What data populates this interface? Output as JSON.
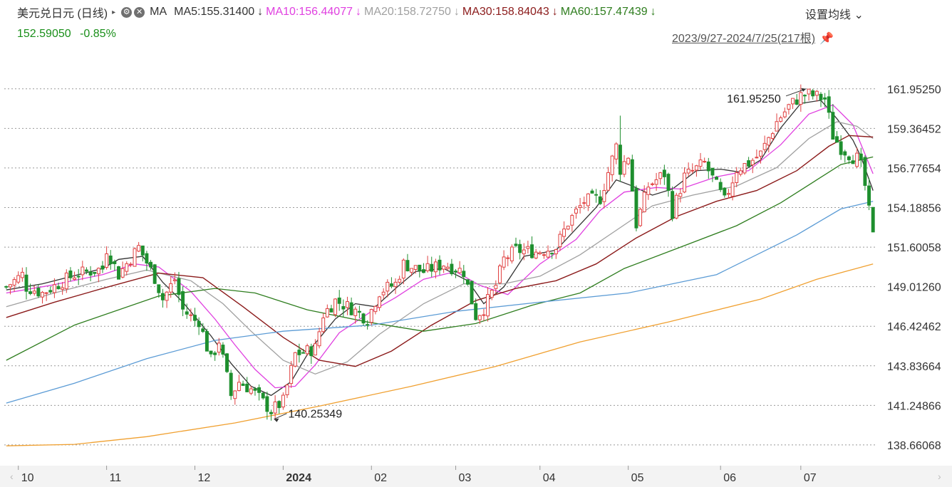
{
  "header": {
    "title": "美元兑日元 (日线)",
    "expand_glyph": "▸",
    "gear_glyph": "⚙",
    "close_glyph": "✕",
    "ma_label": "MA",
    "settings_label": "设置均线",
    "settings_caret": "⌄",
    "range_label": "2023/9/27-2024/7/25(217根)",
    "pin_glyph": "📌",
    "down_arrow": "↓"
  },
  "price": {
    "value": "152.59050",
    "change": "-0.85%"
  },
  "moving_averages": [
    {
      "label": "MA5:155.31400",
      "color": "#333333"
    },
    {
      "label": "MA10:156.44077",
      "color": "#e040e0"
    },
    {
      "label": "MA20:158.72750",
      "color": "#a0a0a0"
    },
    {
      "label": "MA30:158.84043",
      "color": "#8b1a1a"
    },
    {
      "label": "MA60:157.47439",
      "color": "#2e7d1e"
    }
  ],
  "colors": {
    "up": "#e04040",
    "down": "#1e8f2e",
    "ma5": "#333333",
    "ma10": "#e040e0",
    "ma20": "#a0a0a0",
    "ma30": "#8b1a1a",
    "ma60": "#2e7d1e",
    "ma120": "#5b9bd5",
    "ma250": "#f0a030",
    "grid": "#999999"
  },
  "chart_data": {
    "type": "candlestick",
    "ylim": [
      137.4,
      163.2
    ],
    "y_ticks": [
      "161.95250",
      "159.36452",
      "156.77654",
      "154.18856",
      "151.60058",
      "149.01260",
      "146.42462",
      "143.83664",
      "141.24866",
      "138.66068"
    ],
    "x_tick_labels": [
      "10",
      "11",
      "12",
      "2024",
      "02",
      "03",
      "04",
      "05",
      "06",
      "07"
    ],
    "x_tick_dates": [
      "2023-10-02",
      "2023-11-01",
      "2023-12-01",
      "2024-01-02",
      "2024-02-01",
      "2024-03-01",
      "2024-04-01",
      "2024-05-01",
      "2024-06-03",
      "2024-07-01"
    ],
    "date_range": [
      "2023-09-27",
      "2024-07-25"
    ],
    "bar_count": 217,
    "high_annotation": "161.95250",
    "low_annotation": "140.25349",
    "high_point": {
      "date": "2024-07-03",
      "value": 161.9525
    },
    "low_point": {
      "date": "2023-12-28",
      "value": 140.25349
    },
    "candle_path": [
      [
        "2023-09-27",
        149.0
      ],
      [
        "2023-10-03",
        149.8
      ],
      [
        "2023-10-04",
        149.0
      ],
      [
        "2023-10-10",
        148.6
      ],
      [
        "2023-10-20",
        149.8
      ],
      [
        "2023-10-31",
        150.2
      ],
      [
        "2023-11-01",
        151.5
      ],
      [
        "2023-11-06",
        149.8
      ],
      [
        "2023-11-13",
        151.6
      ],
      [
        "2023-11-17",
        149.6
      ],
      [
        "2023-11-21",
        148.2
      ],
      [
        "2023-11-24",
        149.5
      ],
      [
        "2023-11-28",
        147.5
      ],
      [
        "2023-12-01",
        146.8
      ],
      [
        "2023-12-04",
        146.8
      ],
      [
        "2023-12-07",
        144.2
      ],
      [
        "2023-12-11",
        145.5
      ],
      [
        "2023-12-14",
        141.9
      ],
      [
        "2023-12-18",
        142.8
      ],
      [
        "2023-12-21",
        142.3
      ],
      [
        "2023-12-28",
        140.9
      ],
      [
        "2024-01-02",
        141.5
      ],
      [
        "2024-01-05",
        144.6
      ],
      [
        "2024-01-10",
        144.8
      ],
      [
        "2024-01-12",
        145.0
      ],
      [
        "2024-01-16",
        147.2
      ],
      [
        "2024-01-19",
        148.1
      ],
      [
        "2024-01-25",
        147.6
      ],
      [
        "2024-01-31",
        146.9
      ],
      [
        "2024-02-05",
        148.7
      ],
      [
        "2024-02-09",
        149.2
      ],
      [
        "2024-02-13",
        150.5
      ],
      [
        "2024-02-20",
        150.0
      ],
      [
        "2024-02-27",
        150.5
      ],
      [
        "2024-03-05",
        150.0
      ],
      [
        "2024-03-08",
        147.1
      ],
      [
        "2024-03-12",
        147.6
      ],
      [
        "2024-03-15",
        149.1
      ],
      [
        "2024-03-19",
        150.8
      ],
      [
        "2024-03-22",
        151.4
      ],
      [
        "2024-03-29",
        151.3
      ],
      [
        "2024-04-05",
        151.6
      ],
      [
        "2024-04-10",
        153.2
      ],
      [
        "2024-04-16",
        154.6
      ],
      [
        "2024-04-22",
        154.8
      ],
      [
        "2024-04-26",
        158.2
      ],
      [
        "2024-04-29",
        156.7
      ],
      [
        "2024-05-01",
        157.6
      ],
      [
        "2024-05-03",
        153.1
      ],
      [
        "2024-05-08",
        155.6
      ],
      [
        "2024-05-14",
        156.4
      ],
      [
        "2024-05-16",
        153.9
      ],
      [
        "2024-05-21",
        156.2
      ],
      [
        "2024-05-28",
        157.1
      ],
      [
        "2024-06-04",
        154.6
      ],
      [
        "2024-06-07",
        156.7
      ],
      [
        "2024-06-12",
        157.1
      ],
      [
        "2024-06-17",
        157.7
      ],
      [
        "2024-06-21",
        159.8
      ],
      [
        "2024-06-26",
        160.8
      ],
      [
        "2024-07-01",
        161.5
      ],
      [
        "2024-07-03",
        161.6
      ],
      [
        "2024-07-09",
        161.3
      ],
      [
        "2024-07-11",
        158.9
      ],
      [
        "2024-07-15",
        158.1
      ],
      [
        "2024-07-18",
        157.5
      ],
      [
        "2024-07-19",
        157.4
      ],
      [
        "2024-07-22",
        156.9
      ],
      [
        "2024-07-23",
        155.6
      ],
      [
        "2024-07-24",
        153.9
      ],
      [
        "2024-07-25",
        152.59
      ]
    ],
    "ma_series": [
      {
        "key": "ma5",
        "points": [
          [
            "2023-09-27",
            148.8
          ],
          [
            "2023-10-10",
            149.2
          ],
          [
            "2023-10-31",
            150.2
          ],
          [
            "2023-11-06",
            150.8
          ],
          [
            "2023-11-14",
            151.0
          ],
          [
            "2023-11-21",
            149.3
          ],
          [
            "2023-11-28",
            148.0
          ],
          [
            "2023-12-07",
            145.8
          ],
          [
            "2023-12-14",
            144.0
          ],
          [
            "2023-12-21",
            142.5
          ],
          [
            "2023-12-28",
            141.9
          ],
          [
            "2024-01-04",
            142.8
          ],
          [
            "2024-01-11",
            145.0
          ],
          [
            "2024-01-19",
            146.9
          ],
          [
            "2024-01-26",
            147.9
          ],
          [
            "2024-02-02",
            147.7
          ],
          [
            "2024-02-09",
            148.9
          ],
          [
            "2024-02-16",
            150.0
          ],
          [
            "2024-02-27",
            150.2
          ],
          [
            "2024-03-06",
            149.4
          ],
          [
            "2024-03-12",
            147.9
          ],
          [
            "2024-03-19",
            149.0
          ],
          [
            "2024-03-26",
            151.0
          ],
          [
            "2024-04-05",
            151.4
          ],
          [
            "2024-04-12",
            152.8
          ],
          [
            "2024-04-19",
            154.2
          ],
          [
            "2024-04-26",
            156.0
          ],
          [
            "2024-05-02",
            155.6
          ],
          [
            "2024-05-09",
            155.0
          ],
          [
            "2024-05-16",
            155.4
          ],
          [
            "2024-05-24",
            156.6
          ],
          [
            "2024-06-03",
            156.7
          ],
          [
            "2024-06-10",
            156.5
          ],
          [
            "2024-06-17",
            157.3
          ],
          [
            "2024-06-24",
            159.4
          ],
          [
            "2024-07-01",
            161.0
          ],
          [
            "2024-07-08",
            161.2
          ],
          [
            "2024-07-12",
            160.0
          ],
          [
            "2024-07-18",
            158.6
          ],
          [
            "2024-07-22",
            157.5
          ],
          [
            "2024-07-25",
            155.3
          ]
        ]
      },
      {
        "key": "ma10",
        "points": [
          [
            "2023-09-27",
            148.6
          ],
          [
            "2023-10-12",
            149.1
          ],
          [
            "2023-10-31",
            149.8
          ],
          [
            "2023-11-10",
            150.5
          ],
          [
            "2023-11-20",
            150.3
          ],
          [
            "2023-11-30",
            148.7
          ],
          [
            "2023-12-08",
            146.9
          ],
          [
            "2023-12-15",
            145.2
          ],
          [
            "2023-12-22",
            143.6
          ],
          [
            "2023-12-29",
            142.4
          ],
          [
            "2024-01-05",
            142.5
          ],
          [
            "2024-01-12",
            143.9
          ],
          [
            "2024-01-22",
            146.0
          ],
          [
            "2024-02-01",
            147.4
          ],
          [
            "2024-02-09",
            148.3
          ],
          [
            "2024-02-20",
            149.5
          ],
          [
            "2024-03-01",
            150.0
          ],
          [
            "2024-03-11",
            149.1
          ],
          [
            "2024-03-20",
            148.5
          ],
          [
            "2024-04-01",
            150.5
          ],
          [
            "2024-04-12",
            152.1
          ],
          [
            "2024-04-22",
            154.0
          ],
          [
            "2024-04-30",
            155.2
          ],
          [
            "2024-05-10",
            155.5
          ],
          [
            "2024-05-20",
            155.4
          ],
          [
            "2024-05-31",
            156.2
          ],
          [
            "2024-06-12",
            156.6
          ],
          [
            "2024-06-24",
            158.3
          ],
          [
            "2024-07-03",
            160.3
          ],
          [
            "2024-07-11",
            160.9
          ],
          [
            "2024-07-18",
            159.6
          ],
          [
            "2024-07-25",
            156.4
          ]
        ]
      },
      {
        "key": "ma20",
        "points": [
          [
            "2023-09-27",
            147.7
          ],
          [
            "2023-10-13",
            148.6
          ],
          [
            "2023-11-01",
            149.5
          ],
          [
            "2023-11-15",
            150.1
          ],
          [
            "2023-11-30",
            149.4
          ],
          [
            "2023-12-12",
            147.9
          ],
          [
            "2023-12-21",
            146.1
          ],
          [
            "2024-01-02",
            144.2
          ],
          [
            "2024-01-12",
            143.3
          ],
          [
            "2024-01-24",
            144.1
          ],
          [
            "2024-02-05",
            145.9
          ],
          [
            "2024-02-20",
            147.9
          ],
          [
            "2024-03-05",
            149.2
          ],
          [
            "2024-03-19",
            149.2
          ],
          [
            "2024-04-01",
            149.7
          ],
          [
            "2024-04-15",
            151.1
          ],
          [
            "2024-04-26",
            152.7
          ],
          [
            "2024-05-09",
            154.3
          ],
          [
            "2024-05-23",
            155.0
          ],
          [
            "2024-06-07",
            155.6
          ],
          [
            "2024-06-21",
            156.8
          ],
          [
            "2024-07-03",
            158.7
          ],
          [
            "2024-07-12",
            159.8
          ],
          [
            "2024-07-19",
            159.5
          ],
          [
            "2024-07-25",
            158.7
          ]
        ]
      },
      {
        "key": "ma30",
        "points": [
          [
            "2023-09-27",
            147.0
          ],
          [
            "2023-10-13",
            148.0
          ],
          [
            "2023-10-31",
            148.9
          ],
          [
            "2023-11-20",
            149.9
          ],
          [
            "2023-12-05",
            149.6
          ],
          [
            "2023-12-19",
            147.7
          ],
          [
            "2024-01-02",
            145.7
          ],
          [
            "2024-01-15",
            144.2
          ],
          [
            "2024-01-26",
            143.8
          ],
          [
            "2024-02-08",
            144.8
          ],
          [
            "2024-02-22",
            146.5
          ],
          [
            "2024-03-08",
            148.1
          ],
          [
            "2024-03-22",
            148.9
          ],
          [
            "2024-04-05",
            149.4
          ],
          [
            "2024-04-19",
            150.5
          ],
          [
            "2024-05-03",
            152.2
          ],
          [
            "2024-05-17",
            153.6
          ],
          [
            "2024-05-31",
            154.6
          ],
          [
            "2024-06-14",
            155.3
          ],
          [
            "2024-06-28",
            156.6
          ],
          [
            "2024-07-10",
            158.2
          ],
          [
            "2024-07-17",
            158.9
          ],
          [
            "2024-07-25",
            158.8
          ]
        ]
      },
      {
        "key": "ma60",
        "points": [
          [
            "2023-09-27",
            144.2
          ],
          [
            "2023-10-20",
            146.5
          ],
          [
            "2023-11-20",
            148.4
          ],
          [
            "2023-12-08",
            148.9
          ],
          [
            "2023-12-22",
            148.6
          ],
          [
            "2024-01-10",
            147.5
          ],
          [
            "2024-01-31",
            146.7
          ],
          [
            "2024-02-20",
            146.1
          ],
          [
            "2024-03-08",
            146.6
          ],
          [
            "2024-03-28",
            147.8
          ],
          [
            "2024-04-15",
            148.6
          ],
          [
            "2024-04-30",
            150.2
          ],
          [
            "2024-05-20",
            151.6
          ],
          [
            "2024-06-07",
            153.0
          ],
          [
            "2024-06-24",
            154.5
          ],
          [
            "2024-07-05",
            156.0
          ],
          [
            "2024-07-15",
            157.0
          ],
          [
            "2024-07-25",
            157.5
          ]
        ]
      },
      {
        "key": "ma120",
        "points": [
          [
            "2023-09-27",
            141.4
          ],
          [
            "2023-10-20",
            142.7
          ],
          [
            "2023-11-15",
            144.3
          ],
          [
            "2023-12-08",
            145.5
          ],
          [
            "2024-01-02",
            146.1
          ],
          [
            "2024-02-01",
            146.5
          ],
          [
            "2024-03-01",
            147.4
          ],
          [
            "2024-04-01",
            148.0
          ],
          [
            "2024-05-01",
            148.6
          ],
          [
            "2024-05-31",
            149.8
          ],
          [
            "2024-06-28",
            152.4
          ],
          [
            "2024-07-15",
            154.1
          ],
          [
            "2024-07-25",
            154.6
          ]
        ]
      },
      {
        "key": "ma250",
        "points": [
          [
            "2023-09-27",
            138.6
          ],
          [
            "2023-10-20",
            138.7
          ],
          [
            "2023-11-15",
            139.2
          ],
          [
            "2023-12-15",
            140.1
          ],
          [
            "2024-01-15",
            141.2
          ],
          [
            "2024-02-15",
            142.5
          ],
          [
            "2024-03-15",
            143.8
          ],
          [
            "2024-04-15",
            145.4
          ],
          [
            "2024-05-15",
            146.7
          ],
          [
            "2024-06-15",
            148.2
          ],
          [
            "2024-07-05",
            149.5
          ],
          [
            "2024-07-25",
            150.5
          ]
        ]
      }
    ]
  }
}
